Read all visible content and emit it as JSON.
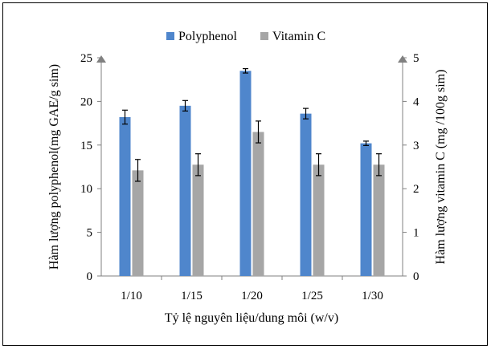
{
  "chart_data": {
    "type": "bar",
    "categories": [
      "1/10",
      "1/15",
      "1/20",
      "1/25",
      "1/30"
    ],
    "series": [
      {
        "name": "Polyphenol",
        "axis": "left",
        "color": "#4f86cc",
        "values": [
          18.2,
          19.5,
          23.5,
          18.6,
          15.2
        ],
        "errors": [
          0.8,
          0.6,
          0.25,
          0.6,
          0.25
        ]
      },
      {
        "name": "Vitamin C",
        "axis": "right",
        "color": "#a6a6a6",
        "values": [
          2.42,
          2.55,
          3.3,
          2.55,
          2.55
        ],
        "errors": [
          0.25,
          0.25,
          0.25,
          0.25,
          0.25
        ]
      }
    ],
    "xlabel": "Tỷ lệ nguyên liệu/dung môi  (w/v)",
    "ylabel_left": "Hàm lượng polyphenol(mg GAE/g sim)",
    "ylabel_right": "Hàm lượng vitamin C (mg /100g sim)",
    "ylim_left": [
      0,
      25
    ],
    "yticks_left": [
      "0",
      "5",
      "10",
      "15",
      "20",
      "25"
    ],
    "ylim_right": [
      0,
      5
    ],
    "yticks_right": [
      "0",
      "1",
      "2",
      "3",
      "4",
      "5"
    ],
    "legend_position": "top-center",
    "grid": false,
    "colors": {
      "frame": "#000000",
      "axis": "#808080",
      "arrow": "#808080",
      "error_bar": "#000000"
    }
  }
}
